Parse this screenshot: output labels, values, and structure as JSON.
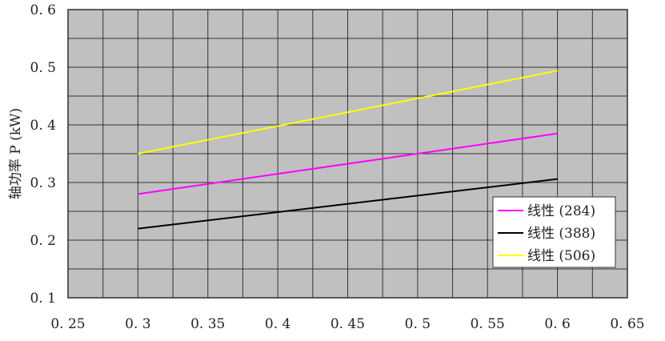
{
  "chart_data": {
    "type": "line",
    "title": "",
    "xlabel": "",
    "ylabel": "轴功率 P (kW)",
    "xlim": [
      0.25,
      0.65
    ],
    "ylim": [
      0.1,
      0.6
    ],
    "xticks": [
      "0. 25",
      "0. 3",
      "0. 35",
      "0. 4",
      "0. 45",
      "0. 5",
      "0. 55",
      "0. 6",
      "0. 65"
    ],
    "xtick_values": [
      0.25,
      0.3,
      0.35,
      0.4,
      0.45,
      0.5,
      0.55,
      0.6,
      0.65
    ],
    "yticks": [
      "0. 1",
      "0. 2",
      "0. 3",
      "0. 4",
      "0. 5",
      "0. 6"
    ],
    "ytick_values": [
      0.1,
      0.2,
      0.3,
      0.4,
      0.5,
      0.6
    ],
    "grid": true,
    "grid_x_step": 0.025,
    "grid_y_step": 0.05,
    "plot_background": "#c0c0c0",
    "legend_position": "bottom-right",
    "series": [
      {
        "name": "线性 (284)",
        "color": "#ff00ff",
        "x": [
          0.3,
          0.6
        ],
        "y": [
          0.28,
          0.385
        ]
      },
      {
        "name": "线性 (388)",
        "color": "#000000",
        "x": [
          0.3,
          0.6
        ],
        "y": [
          0.22,
          0.306
        ]
      },
      {
        "name": "线性 (506)",
        "color": "#ffff00",
        "x": [
          0.3,
          0.6
        ],
        "y": [
          0.35,
          0.494
        ]
      }
    ]
  }
}
